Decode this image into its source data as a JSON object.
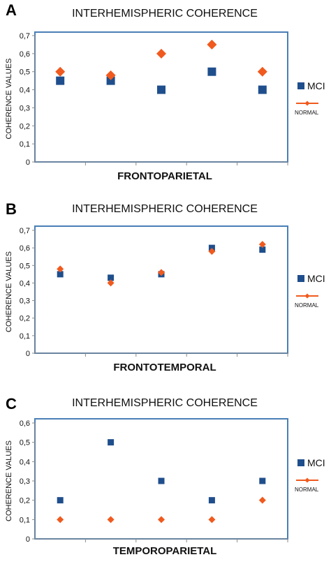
{
  "chart_data": [
    {
      "type": "scatter",
      "panel_label": "A",
      "title": "INTERHEMISPHERIC COHERENCE",
      "xlabel": "FRONTOPARIETAL",
      "ylabel": "COHERENCE VALUES",
      "ylim": [
        0,
        0.7
      ],
      "yticks": [
        "0",
        "0,1",
        "0,2",
        "0,3",
        "0,4",
        "0,5",
        "0,6",
        "0,7"
      ],
      "x": [
        1,
        2,
        3,
        4,
        5
      ],
      "grid": false,
      "legend_position": "right",
      "series": [
        {
          "name": "MCI",
          "marker": "square",
          "color": "#1f4e8c",
          "values": [
            0.45,
            0.45,
            0.4,
            0.5,
            0.4
          ]
        },
        {
          "name": "NORMAL",
          "marker": "diamond",
          "color": "#f05a1e",
          "values": [
            0.5,
            0.48,
            0.6,
            0.65,
            0.5
          ]
        }
      ]
    },
    {
      "type": "scatter",
      "panel_label": "B",
      "title": "INTERHEMISPHERIC COHERENCE",
      "xlabel": "FRONTOTEMPORAL",
      "ylabel": "COHERENCE VALUES",
      "ylim": [
        0,
        0.7
      ],
      "yticks": [
        "0",
        "0,1",
        "0,2",
        "0,3",
        "0,4",
        "0,5",
        "0,6",
        "0,7"
      ],
      "x": [
        1,
        2,
        3,
        4,
        5
      ],
      "grid": false,
      "legend_position": "right",
      "series": [
        {
          "name": "MCI",
          "marker": "square",
          "color": "#1f4e8c",
          "values": [
            0.45,
            0.43,
            0.45,
            0.6,
            0.59
          ]
        },
        {
          "name": "NORMAL",
          "marker": "diamond",
          "color": "#f05a1e",
          "values": [
            0.48,
            0.4,
            0.46,
            0.58,
            0.62
          ]
        }
      ]
    },
    {
      "type": "scatter",
      "panel_label": "C",
      "title": "INTERHEMISPHERIC COHERENCE",
      "xlabel": "TEMPOROPARIETAL",
      "ylabel": "COHERENCE VALUES",
      "ylim": [
        0,
        0.6
      ],
      "yticks": [
        "0",
        "0,1",
        "0,2",
        "0,3",
        "0,4",
        "0,5",
        "0,6"
      ],
      "x": [
        1,
        2,
        3,
        4,
        5
      ],
      "grid": false,
      "legend_position": "right",
      "series": [
        {
          "name": "MCI",
          "marker": "square",
          "color": "#1f4e8c",
          "values": [
            0.2,
            0.5,
            0.3,
            0.2,
            0.3
          ]
        },
        {
          "name": "NORMAL",
          "marker": "diamond",
          "color": "#f05a1e",
          "values": [
            0.1,
            0.1,
            0.1,
            0.1,
            0.2
          ]
        }
      ]
    }
  ]
}
